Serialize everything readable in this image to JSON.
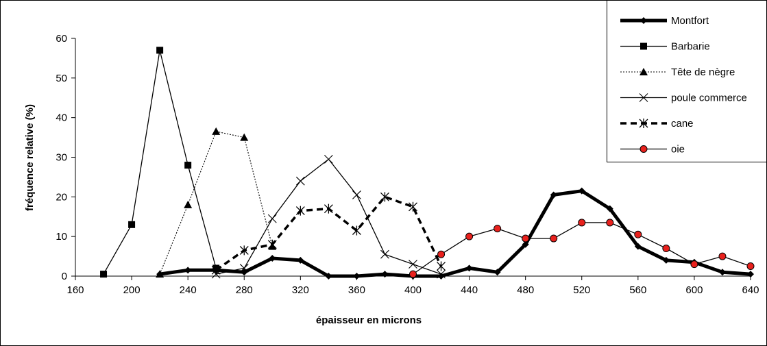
{
  "chart_data": {
    "type": "line",
    "xlabel": "épaisseur  en microns",
    "ylabel": "fréquence  relative  (%)",
    "xlim": [
      160,
      640
    ],
    "ylim": [
      0,
      60
    ],
    "x_ticks": [
      "160",
      "200",
      "240",
      "280",
      "320",
      "360",
      "400",
      "440",
      "480",
      "520",
      "560",
      "600",
      "640"
    ],
    "y_ticks": [
      "0",
      "10",
      "20",
      "30",
      "40",
      "50",
      "60"
    ],
    "grid": false,
    "legend_position": "top-right",
    "series": [
      {
        "name": "Montfort",
        "color": "#000000",
        "line": "solid-bold",
        "marker": "diamond",
        "x": [
          220,
          240,
          260,
          280,
          300,
          320,
          340,
          360,
          380,
          400,
          420,
          440,
          460,
          480,
          500,
          520,
          540,
          560,
          580,
          600,
          620,
          640
        ],
        "y": [
          0.5,
          1.5,
          1.5,
          1,
          4.5,
          4,
          0,
          0,
          0.5,
          0,
          0,
          2,
          1,
          8,
          20.5,
          21.5,
          17,
          7.5,
          4,
          3.5,
          1,
          0.5
        ]
      },
      {
        "name": "Barbarie",
        "color": "#000000",
        "line": "solid",
        "marker": "square",
        "x": [
          180,
          200,
          220,
          240,
          260
        ],
        "y": [
          0.5,
          13,
          57,
          28,
          2
        ]
      },
      {
        "name": "Tête de nègre",
        "color": "#000000",
        "line": "dotted",
        "marker": "triangle",
        "x": [
          220,
          240,
          260,
          280,
          300
        ],
        "y": [
          0.5,
          18,
          36.5,
          35,
          7.5
        ]
      },
      {
        "name": "poule commerce",
        "color": "#000000",
        "line": "solid",
        "marker": "x",
        "x": [
          260,
          280,
          300,
          320,
          340,
          360,
          380,
          400,
          420
        ],
        "y": [
          0.5,
          2,
          14.5,
          24,
          29.5,
          20.5,
          5.5,
          3,
          0.5
        ]
      },
      {
        "name": "cane",
        "color": "#000000",
        "line": "dashed-bold",
        "marker": "star",
        "x": [
          260,
          280,
          300,
          320,
          340,
          360,
          380,
          400,
          420
        ],
        "y": [
          1.5,
          6.5,
          8,
          16.5,
          17,
          11.5,
          20,
          17.5,
          2.5
        ]
      },
      {
        "name": "oie",
        "color": "#000000",
        "marker_fill": "#e8211d",
        "line": "solid",
        "marker": "circle",
        "x": [
          400,
          420,
          440,
          460,
          480,
          500,
          520,
          540,
          560,
          580,
          600,
          620,
          640
        ],
        "y": [
          0.5,
          5.5,
          10,
          12,
          9.5,
          9.5,
          13.5,
          13.5,
          10.5,
          7,
          3,
          5,
          2.5
        ]
      }
    ]
  }
}
